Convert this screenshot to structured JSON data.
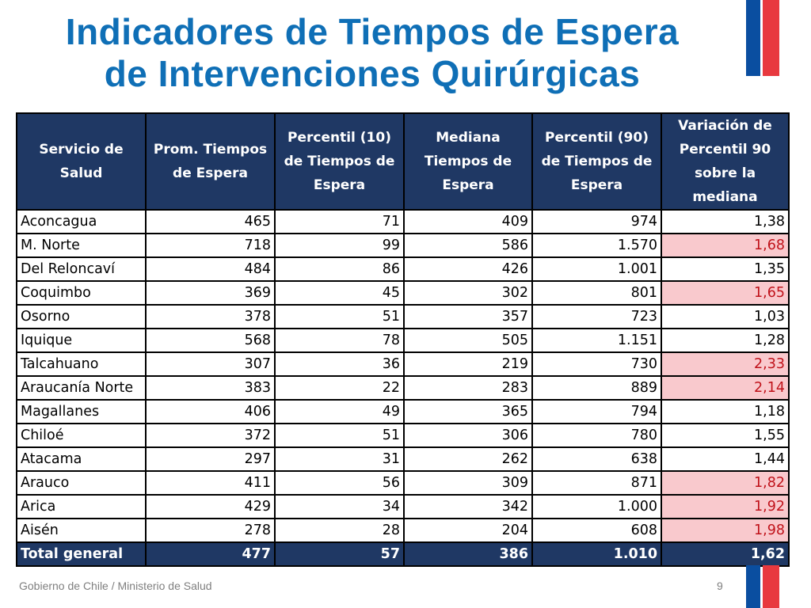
{
  "title": {
    "line1": "Indicadores de Tiempos de Espera",
    "line2": "de Intervenciones Quirúrgicas"
  },
  "colors": {
    "title": "#0f6fb6",
    "header_bg": "#1f3864",
    "highlight_bg": "#f9c9cd",
    "highlight_text": "#c0121a",
    "flag_blue": "#0a4ea0",
    "flag_red": "#e8393f"
  },
  "table": {
    "headers": [
      "Servicio de Salud",
      "Prom. Tiempos de Espera",
      "Percentil (10) de Tiempos de Espera",
      "Mediana Tiempos de Espera",
      "Percentil (90) de Tiempos de Espera",
      "Variación de Percentil 90 sobre la mediana"
    ],
    "rows": [
      {
        "servicio": "Aconcagua",
        "prom": "465",
        "p10": "71",
        "mediana": "409",
        "p90": "974",
        "variacion": "1,38",
        "highlight": false
      },
      {
        "servicio": "M. Norte",
        "prom": "718",
        "p10": "99",
        "mediana": "586",
        "p90": "1.570",
        "variacion": "1,68",
        "highlight": true
      },
      {
        "servicio": "Del Reloncaví",
        "prom": "484",
        "p10": "86",
        "mediana": "426",
        "p90": "1.001",
        "variacion": "1,35",
        "highlight": false
      },
      {
        "servicio": "Coquimbo",
        "prom": "369",
        "p10": "45",
        "mediana": "302",
        "p90": "801",
        "variacion": "1,65",
        "highlight": true
      },
      {
        "servicio": "Osorno",
        "prom": "378",
        "p10": "51",
        "mediana": "357",
        "p90": "723",
        "variacion": "1,03",
        "highlight": false
      },
      {
        "servicio": "Iquique",
        "prom": "568",
        "p10": "78",
        "mediana": "505",
        "p90": "1.151",
        "variacion": "1,28",
        "highlight": false
      },
      {
        "servicio": "Talcahuano",
        "prom": "307",
        "p10": "36",
        "mediana": "219",
        "p90": "730",
        "variacion": "2,33",
        "highlight": true
      },
      {
        "servicio": "Araucanía Norte",
        "prom": "383",
        "p10": "22",
        "mediana": "283",
        "p90": "889",
        "variacion": "2,14",
        "highlight": true
      },
      {
        "servicio": "Magallanes",
        "prom": "406",
        "p10": "49",
        "mediana": "365",
        "p90": "794",
        "variacion": "1,18",
        "highlight": false
      },
      {
        "servicio": "Chiloé",
        "prom": "372",
        "p10": "51",
        "mediana": "306",
        "p90": "780",
        "variacion": "1,55",
        "highlight": false
      },
      {
        "servicio": "Atacama",
        "prom": "297",
        "p10": "31",
        "mediana": "262",
        "p90": "638",
        "variacion": "1,44",
        "highlight": false
      },
      {
        "servicio": "Arauco",
        "prom": "411",
        "p10": "56",
        "mediana": "309",
        "p90": "871",
        "variacion": "1,82",
        "highlight": true
      },
      {
        "servicio": "Arica",
        "prom": "429",
        "p10": "34",
        "mediana": "342",
        "p90": "1.000",
        "variacion": "1,92",
        "highlight": true
      },
      {
        "servicio": "Aisén",
        "prom": "278",
        "p10": "28",
        "mediana": "204",
        "p90": "608",
        "variacion": "1,98",
        "highlight": true
      }
    ],
    "total": {
      "servicio": "Total general",
      "prom": "477",
      "p10": "57",
      "mediana": "386",
      "p90": "1.010",
      "variacion": "1,62"
    }
  },
  "footer": {
    "text": "Gobierno de Chile / Ministerio de Salud",
    "page_number": "9"
  }
}
